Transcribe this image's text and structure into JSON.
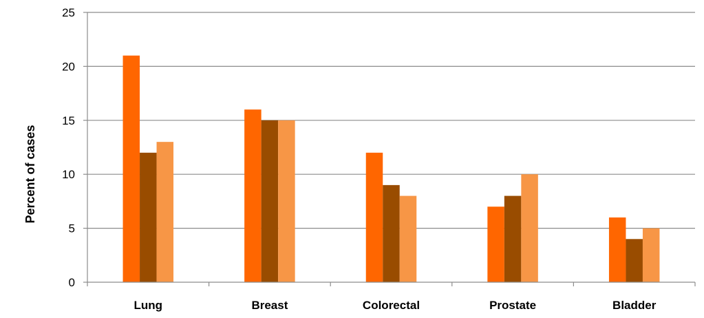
{
  "chart_data": {
    "type": "bar",
    "title": "",
    "xlabel": "",
    "ylabel": "Percent of cases",
    "categories": [
      "Lung",
      "Breast",
      "Colorectal",
      "Prostate",
      "Bladder"
    ],
    "series": [
      {
        "color": "#ff6600",
        "values": [
          21,
          16,
          12,
          7,
          6
        ]
      },
      {
        "color": "#994c00",
        "values": [
          12,
          15,
          9,
          8,
          4
        ]
      },
      {
        "color": "#f79646",
        "values": [
          13,
          15,
          8,
          10,
          5
        ]
      }
    ],
    "ylim": [
      0,
      25
    ],
    "yticks": [
      "0",
      "5",
      "10",
      "15",
      "20",
      "25"
    ],
    "grid": true,
    "legend": "none"
  }
}
